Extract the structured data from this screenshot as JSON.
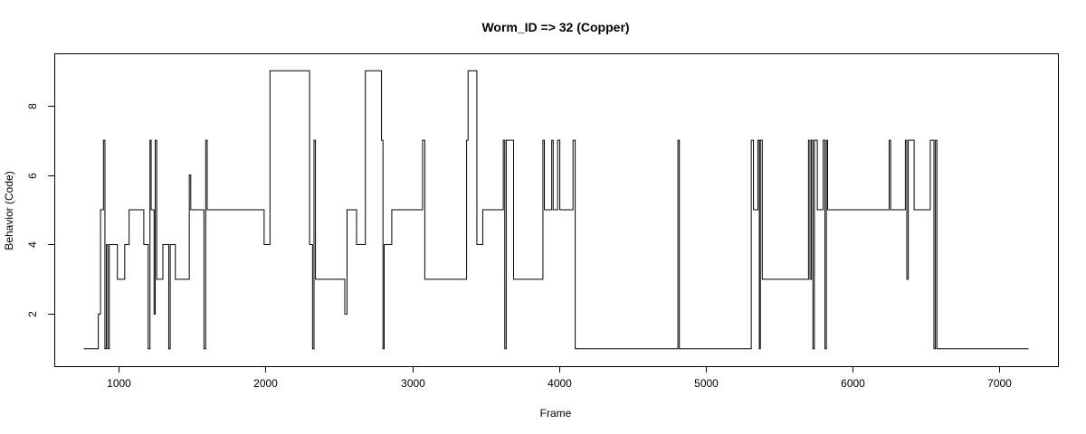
{
  "chart_data": {
    "type": "line",
    "title": "Worm_ID => 32 (Copper)",
    "xlabel": "Frame",
    "ylabel": "Behavior (Code)",
    "xlim": [
      560,
      7400
    ],
    "ylim": [
      0.5,
      9.5
    ],
    "x_ticks": [
      1000,
      2000,
      3000,
      4000,
      5000,
      6000,
      7000
    ],
    "y_ticks": [
      2,
      4,
      6,
      8
    ],
    "grid": false,
    "line_style": "step",
    "series": [
      {
        "color": "#000000",
        "points": [
          [
            760,
            1
          ],
          [
            860,
            1
          ],
          [
            860,
            2
          ],
          [
            875,
            2
          ],
          [
            875,
            5
          ],
          [
            895,
            5
          ],
          [
            895,
            7
          ],
          [
            905,
            7
          ],
          [
            905,
            1
          ],
          [
            915,
            1
          ],
          [
            915,
            4
          ],
          [
            925,
            4
          ],
          [
            925,
            1
          ],
          [
            935,
            1
          ],
          [
            935,
            4
          ],
          [
            990,
            4
          ],
          [
            990,
            3
          ],
          [
            1040,
            3
          ],
          [
            1040,
            4
          ],
          [
            1070,
            4
          ],
          [
            1070,
            5
          ],
          [
            1170,
            5
          ],
          [
            1170,
            4
          ],
          [
            1200,
            4
          ],
          [
            1200,
            1
          ],
          [
            1212,
            1
          ],
          [
            1212,
            7
          ],
          [
            1220,
            7
          ],
          [
            1220,
            5
          ],
          [
            1240,
            5
          ],
          [
            1240,
            2
          ],
          [
            1248,
            2
          ],
          [
            1248,
            7
          ],
          [
            1258,
            7
          ],
          [
            1258,
            3
          ],
          [
            1300,
            3
          ],
          [
            1300,
            4
          ],
          [
            1340,
            4
          ],
          [
            1340,
            1
          ],
          [
            1350,
            1
          ],
          [
            1350,
            4
          ],
          [
            1385,
            4
          ],
          [
            1385,
            3
          ],
          [
            1480,
            3
          ],
          [
            1480,
            6
          ],
          [
            1490,
            6
          ],
          [
            1490,
            5
          ],
          [
            1580,
            5
          ],
          [
            1580,
            1
          ],
          [
            1592,
            1
          ],
          [
            1592,
            7
          ],
          [
            1602,
            7
          ],
          [
            1602,
            5
          ],
          [
            1990,
            5
          ],
          [
            1990,
            4
          ],
          [
            2030,
            4
          ],
          [
            2030,
            9
          ],
          [
            2300,
            9
          ],
          [
            2300,
            4
          ],
          [
            2320,
            4
          ],
          [
            2320,
            1
          ],
          [
            2330,
            1
          ],
          [
            2330,
            7
          ],
          [
            2340,
            7
          ],
          [
            2340,
            3
          ],
          [
            2540,
            3
          ],
          [
            2540,
            2
          ],
          [
            2555,
            2
          ],
          [
            2555,
            5
          ],
          [
            2620,
            5
          ],
          [
            2620,
            4
          ],
          [
            2680,
            4
          ],
          [
            2680,
            9
          ],
          [
            2790,
            9
          ],
          [
            2790,
            7
          ],
          [
            2800,
            7
          ],
          [
            2800,
            1
          ],
          [
            2808,
            1
          ],
          [
            2808,
            4
          ],
          [
            2860,
            4
          ],
          [
            2860,
            5
          ],
          [
            3070,
            5
          ],
          [
            3070,
            7
          ],
          [
            3085,
            7
          ],
          [
            3085,
            3
          ],
          [
            3370,
            3
          ],
          [
            3370,
            7
          ],
          [
            3380,
            7
          ],
          [
            3380,
            9
          ],
          [
            3440,
            9
          ],
          [
            3440,
            4
          ],
          [
            3480,
            4
          ],
          [
            3480,
            5
          ],
          [
            3620,
            5
          ],
          [
            3620,
            7
          ],
          [
            3630,
            7
          ],
          [
            3630,
            1
          ],
          [
            3640,
            1
          ],
          [
            3640,
            7
          ],
          [
            3690,
            7
          ],
          [
            3690,
            3
          ],
          [
            3890,
            3
          ],
          [
            3890,
            7
          ],
          [
            3900,
            7
          ],
          [
            3900,
            5
          ],
          [
            3950,
            5
          ],
          [
            3950,
            7
          ],
          [
            3960,
            7
          ],
          [
            3960,
            5
          ],
          [
            3990,
            5
          ],
          [
            3990,
            7
          ],
          [
            4005,
            7
          ],
          [
            4005,
            5
          ],
          [
            4095,
            5
          ],
          [
            4095,
            7
          ],
          [
            4110,
            7
          ],
          [
            4110,
            1
          ],
          [
            4810,
            1
          ],
          [
            4810,
            7
          ],
          [
            4820,
            7
          ],
          [
            4820,
            1
          ],
          [
            5310,
            1
          ],
          [
            5310,
            7
          ],
          [
            5325,
            7
          ],
          [
            5325,
            5
          ],
          [
            5355,
            5
          ],
          [
            5355,
            7
          ],
          [
            5365,
            7
          ],
          [
            5365,
            1
          ],
          [
            5372,
            1
          ],
          [
            5372,
            7
          ],
          [
            5385,
            7
          ],
          [
            5385,
            3
          ],
          [
            5700,
            3
          ],
          [
            5700,
            7
          ],
          [
            5710,
            7
          ],
          [
            5710,
            3
          ],
          [
            5720,
            3
          ],
          [
            5720,
            7
          ],
          [
            5730,
            7
          ],
          [
            5730,
            1
          ],
          [
            5740,
            1
          ],
          [
            5740,
            7
          ],
          [
            5760,
            7
          ],
          [
            5760,
            5
          ],
          [
            5800,
            5
          ],
          [
            5800,
            7
          ],
          [
            5812,
            7
          ],
          [
            5812,
            1
          ],
          [
            5822,
            1
          ],
          [
            5822,
            7
          ],
          [
            5830,
            7
          ],
          [
            5830,
            5
          ],
          [
            6250,
            5
          ],
          [
            6250,
            7
          ],
          [
            6260,
            7
          ],
          [
            6260,
            5
          ],
          [
            6360,
            5
          ],
          [
            6360,
            7
          ],
          [
            6370,
            7
          ],
          [
            6370,
            3
          ],
          [
            6380,
            3
          ],
          [
            6380,
            7
          ],
          [
            6420,
            7
          ],
          [
            6420,
            5
          ],
          [
            6530,
            5
          ],
          [
            6530,
            7
          ],
          [
            6555,
            7
          ],
          [
            6555,
            1
          ],
          [
            6565,
            1
          ],
          [
            6565,
            7
          ],
          [
            6575,
            7
          ],
          [
            6575,
            1
          ],
          [
            7200,
            1
          ]
        ]
      }
    ]
  }
}
